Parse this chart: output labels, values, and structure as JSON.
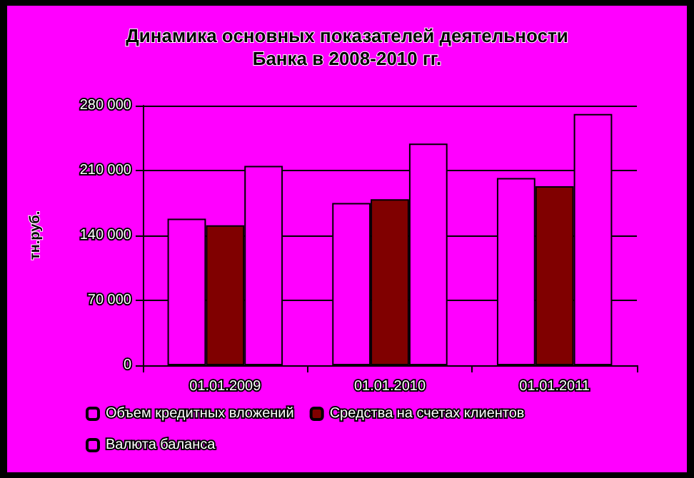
{
  "chart_data": {
    "type": "bar",
    "title": "Динамика основных показателей деятельности\nБанка в 2008-2010 гг.",
    "ylabel": "тн.руб.",
    "categories": [
      "01.01.2009",
      "01.01.2010",
      "01.01.2011"
    ],
    "series": [
      {
        "name": "Объем кредитных вложений",
        "color": "#ff00ff",
        "values": [
          158000,
          175000,
          202000
        ]
      },
      {
        "name": "Средства на счетах клиентов",
        "color": "#800000",
        "values": [
          151000,
          179000,
          193000
        ]
      },
      {
        "name": "Валюта баланса",
        "color": "#ff00ff",
        "values": [
          215000,
          239000,
          271000
        ]
      }
    ],
    "ylim": [
      0,
      280000
    ],
    "yticks": [
      {
        "value": 0,
        "label": "0"
      },
      {
        "value": 70000,
        "label": "70 000"
      },
      {
        "value": 140000,
        "label": "140 000"
      },
      {
        "value": 210000,
        "label": "210 000"
      },
      {
        "value": 280000,
        "label": "280 000"
      }
    ],
    "grid": "y",
    "legend": "bottom"
  }
}
